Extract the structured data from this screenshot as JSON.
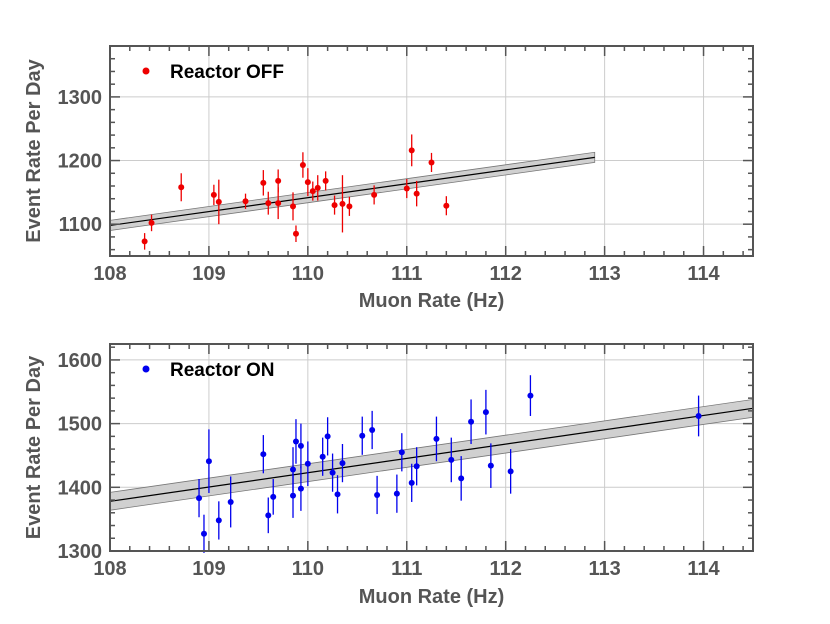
{
  "chart_data": [
    {
      "type": "scatter",
      "legend": "Reactor OFF",
      "legend_position": "top-left",
      "color": "#ee0000",
      "xlabel": "Muon Rate (Hz)",
      "ylabel": "Event Rate Per Day",
      "xlim": [
        108,
        114.5
      ],
      "ylim": [
        1050,
        1380
      ],
      "xticks": [
        108,
        109,
        110,
        111,
        112,
        113,
        114
      ],
      "yticks": [
        1100,
        1200,
        1300
      ],
      "xtick_labels": [
        "108",
        "109",
        "110",
        "111",
        "112",
        "113",
        "114"
      ],
      "ytick_labels": [
        "1100",
        "1200",
        "1300"
      ],
      "grid": true,
      "points": [
        {
          "x": 108.35,
          "y": 1073,
          "err": 13
        },
        {
          "x": 108.42,
          "y": 1102,
          "err": 13
        },
        {
          "x": 108.72,
          "y": 1158,
          "err": 22
        },
        {
          "x": 109.05,
          "y": 1146,
          "err": 16
        },
        {
          "x": 109.1,
          "y": 1135,
          "err": 35
        },
        {
          "x": 109.37,
          "y": 1136,
          "err": 12
        },
        {
          "x": 109.55,
          "y": 1165,
          "err": 20
        },
        {
          "x": 109.6,
          "y": 1133,
          "err": 18
        },
        {
          "x": 109.7,
          "y": 1168,
          "err": 18
        },
        {
          "x": 109.7,
          "y": 1133,
          "err": 25
        },
        {
          "x": 109.85,
          "y": 1128,
          "err": 22
        },
        {
          "x": 109.88,
          "y": 1085,
          "err": 13
        },
        {
          "x": 109.95,
          "y": 1193,
          "err": 20
        },
        {
          "x": 110.0,
          "y": 1166,
          "err": 22
        },
        {
          "x": 110.05,
          "y": 1152,
          "err": 15
        },
        {
          "x": 110.1,
          "y": 1157,
          "err": 20
        },
        {
          "x": 110.18,
          "y": 1168,
          "err": 15
        },
        {
          "x": 110.27,
          "y": 1130,
          "err": 15
        },
        {
          "x": 110.35,
          "y": 1132,
          "err": 45
        },
        {
          "x": 110.42,
          "y": 1128,
          "err": 15
        },
        {
          "x": 110.67,
          "y": 1146,
          "err": 15
        },
        {
          "x": 111.0,
          "y": 1156,
          "err": 15
        },
        {
          "x": 111.05,
          "y": 1216,
          "err": 25
        },
        {
          "x": 111.1,
          "y": 1148,
          "err": 20
        },
        {
          "x": 111.25,
          "y": 1197,
          "err": 15
        },
        {
          "x": 111.4,
          "y": 1129,
          "err": 15
        }
      ],
      "fit": {
        "x": [
          108,
          112.9
        ],
        "y": [
          1098,
          1205
        ],
        "band": 8
      }
    },
    {
      "type": "scatter",
      "legend": "Reactor ON",
      "legend_position": "top-left",
      "color": "#0000ee",
      "xlabel": "Muon Rate (Hz)",
      "ylabel": "Event Rate Per Day",
      "xlim": [
        108,
        114.5
      ],
      "ylim": [
        1300,
        1625
      ],
      "xticks": [
        108,
        109,
        110,
        111,
        112,
        113,
        114
      ],
      "yticks": [
        1300,
        1400,
        1500,
        1600
      ],
      "xtick_labels": [
        "108",
        "109",
        "110",
        "111",
        "112",
        "113",
        "114"
      ],
      "ytick_labels": [
        "1300",
        "1400",
        "1500",
        "1600"
      ],
      "grid": true,
      "points": [
        {
          "x": 108.9,
          "y": 1383,
          "err": 30
        },
        {
          "x": 108.95,
          "y": 1327,
          "err": 30
        },
        {
          "x": 109.0,
          "y": 1441,
          "err": 50
        },
        {
          "x": 109.1,
          "y": 1348,
          "err": 30
        },
        {
          "x": 109.22,
          "y": 1377,
          "err": 40
        },
        {
          "x": 109.55,
          "y": 1452,
          "err": 30
        },
        {
          "x": 109.6,
          "y": 1356,
          "err": 28
        },
        {
          "x": 109.65,
          "y": 1385,
          "err": 28
        },
        {
          "x": 109.85,
          "y": 1428,
          "err": 35
        },
        {
          "x": 109.85,
          "y": 1387,
          "err": 35
        },
        {
          "x": 109.88,
          "y": 1472,
          "err": 35
        },
        {
          "x": 109.93,
          "y": 1465,
          "err": 35
        },
        {
          "x": 109.93,
          "y": 1398,
          "err": 35
        },
        {
          "x": 110.0,
          "y": 1437,
          "err": 35
        },
        {
          "x": 110.15,
          "y": 1448,
          "err": 30
        },
        {
          "x": 110.2,
          "y": 1480,
          "err": 30
        },
        {
          "x": 110.25,
          "y": 1423,
          "err": 30
        },
        {
          "x": 110.3,
          "y": 1389,
          "err": 30
        },
        {
          "x": 110.35,
          "y": 1438,
          "err": 30
        },
        {
          "x": 110.55,
          "y": 1481,
          "err": 30
        },
        {
          "x": 110.65,
          "y": 1490,
          "err": 30
        },
        {
          "x": 110.7,
          "y": 1388,
          "err": 30
        },
        {
          "x": 110.9,
          "y": 1390,
          "err": 30
        },
        {
          "x": 110.95,
          "y": 1455,
          "err": 30
        },
        {
          "x": 111.05,
          "y": 1407,
          "err": 30
        },
        {
          "x": 111.1,
          "y": 1433,
          "err": 30
        },
        {
          "x": 111.3,
          "y": 1476,
          "err": 35
        },
        {
          "x": 111.45,
          "y": 1443,
          "err": 35
        },
        {
          "x": 111.55,
          "y": 1414,
          "err": 35
        },
        {
          "x": 111.65,
          "y": 1503,
          "err": 35
        },
        {
          "x": 111.8,
          "y": 1518,
          "err": 35
        },
        {
          "x": 111.85,
          "y": 1434,
          "err": 35
        },
        {
          "x": 112.05,
          "y": 1425,
          "err": 35
        },
        {
          "x": 112.25,
          "y": 1544,
          "err": 32
        },
        {
          "x": 113.95,
          "y": 1512,
          "err": 32
        }
      ],
      "fit": {
        "x": [
          108,
          114.5
        ],
        "y": [
          1378,
          1524
        ],
        "band": 14
      }
    }
  ]
}
